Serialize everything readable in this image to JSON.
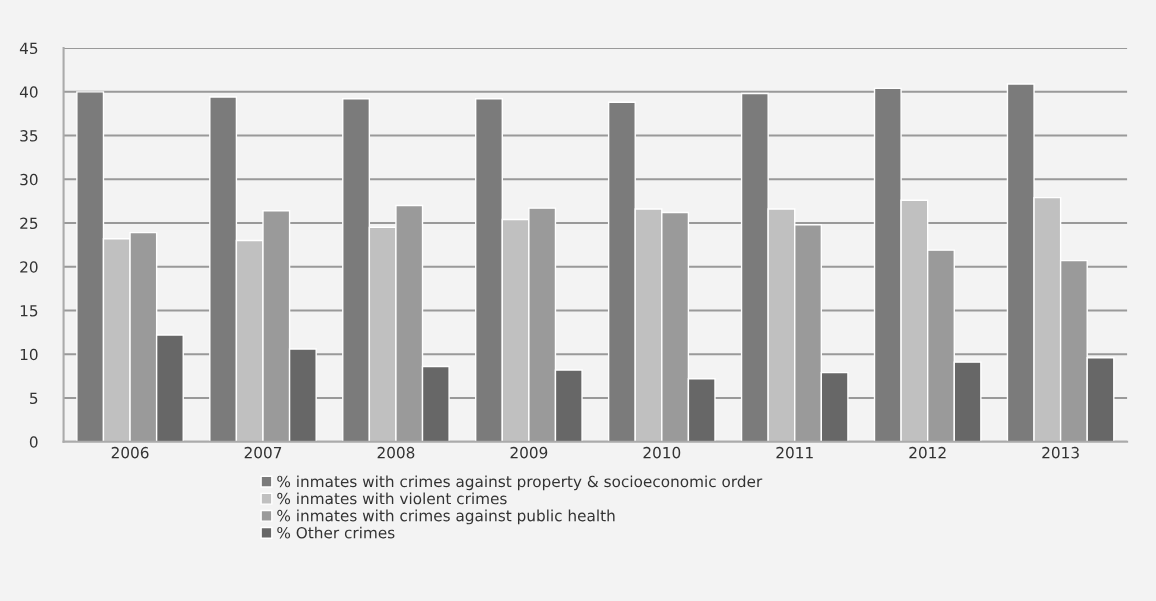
{
  "chart_data": {
    "type": "bar",
    "categories": [
      "2006",
      "2007",
      "2008",
      "2009",
      "2010",
      "2011",
      "2012",
      "2013"
    ],
    "series": [
      {
        "name": "% inmates with crimes against property & socioeconomic order",
        "color": "#7b7b7b",
        "values": [
          40.0,
          39.4,
          39.2,
          39.2,
          38.8,
          39.8,
          40.4,
          40.9
        ]
      },
      {
        "name": "% inmates with violent crimes",
        "color": "#c0c0c0",
        "values": [
          23.2,
          23.0,
          24.5,
          25.4,
          26.6,
          26.6,
          27.6,
          27.9
        ]
      },
      {
        "name": "% inmates with crimes against public health",
        "color": "#9a9a9a",
        "values": [
          23.9,
          26.4,
          27.0,
          26.7,
          26.2,
          24.8,
          21.9,
          20.7
        ]
      },
      {
        "name": "% Other crimes",
        "color": "#676767",
        "values": [
          12.2,
          10.6,
          8.6,
          8.2,
          7.2,
          7.9,
          9.1,
          9.6
        ]
      }
    ],
    "ylim": [
      0,
      45
    ],
    "yticks": [
      0,
      5,
      10,
      15,
      20,
      25,
      30,
      35,
      40,
      45
    ],
    "grid": "y",
    "legend": "bottom"
  }
}
